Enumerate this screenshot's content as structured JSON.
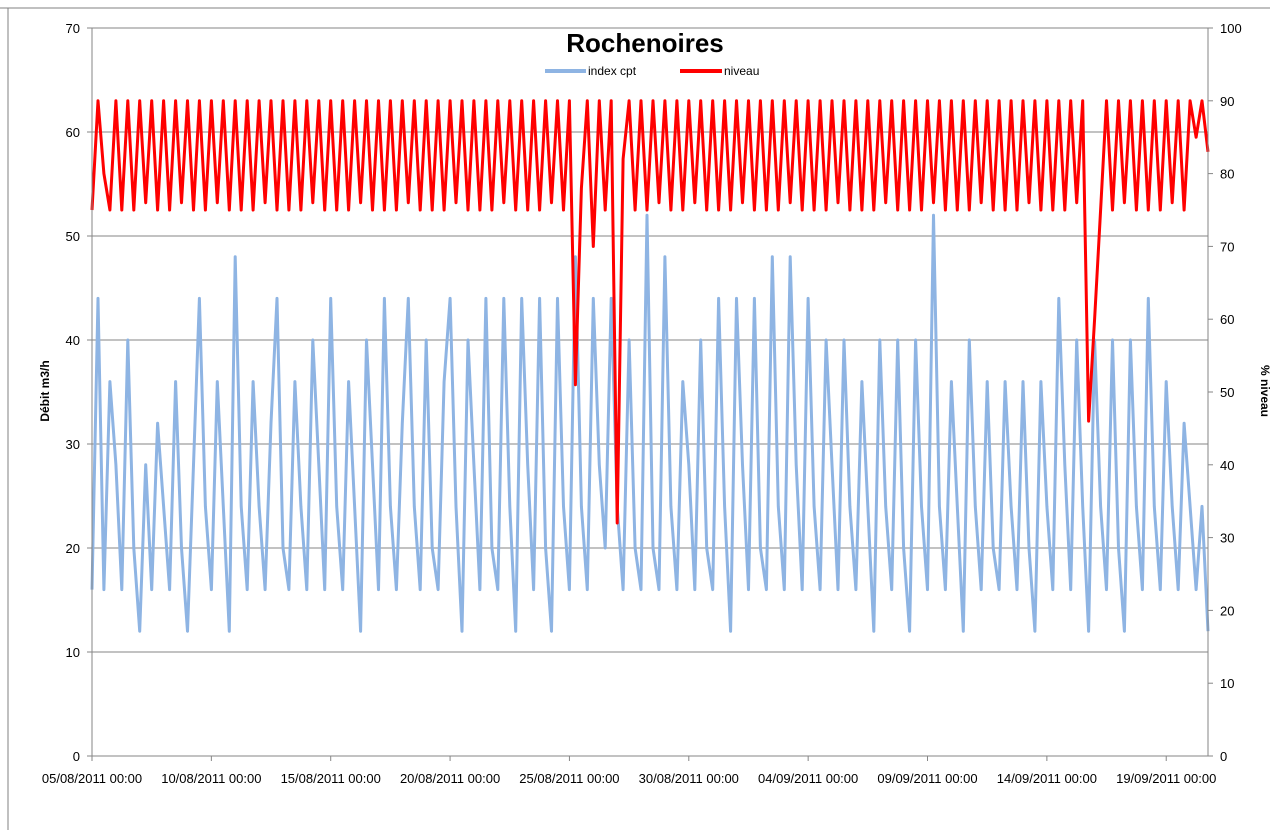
{
  "chart_data": {
    "type": "line",
    "title": "Rochenoires",
    "ylabel": "Débit m3/h",
    "y2label": "% niveau",
    "ylim": [
      0,
      70
    ],
    "y2lim": [
      0,
      100
    ],
    "yticks": [
      0,
      10,
      20,
      30,
      40,
      50,
      60,
      70
    ],
    "y2ticks": [
      0,
      10,
      20,
      30,
      40,
      50,
      60,
      70,
      80,
      90,
      100
    ],
    "grid": true,
    "legend_position": "top-center",
    "x_start": "05/08/2011 00:00",
    "x_end": "20/09/2011 18:00",
    "xtick_labels": [
      "05/08/2011 00:00",
      "10/08/2011 00:00",
      "15/08/2011 00:00",
      "20/08/2011 00:00",
      "25/08/2011 00:00",
      "30/08/2011 00:00",
      "04/09/2011 00:00",
      "09/09/2011 00:00",
      "14/09/2011 00:00",
      "19/09/2011 00:00"
    ],
    "series": [
      {
        "name": "index cpt",
        "axis": "left",
        "color": "#8EB4E3",
        "x": [
          "05/08/2011 00:00",
          "05/08/2011 06:00",
          "05/08/2011 12:00",
          "05/08/2011 18:00",
          "06/08/2011 00:00",
          "06/08/2011 06:00",
          "06/08/2011 12:00",
          "06/08/2011 18:00",
          "07/08/2011 00:00",
          "07/08/2011 06:00",
          "07/08/2011 12:00",
          "07/08/2011 18:00",
          "08/08/2011 00:00",
          "08/08/2011 06:00",
          "08/08/2011 12:00",
          "08/08/2011 18:00",
          "09/08/2011 00:00",
          "09/08/2011 06:00",
          "09/08/2011 12:00",
          "09/08/2011 18:00",
          "10/08/2011 00:00",
          "10/08/2011 06:00",
          "10/08/2011 12:00",
          "10/08/2011 18:00",
          "11/08/2011 00:00",
          "11/08/2011 06:00",
          "11/08/2011 12:00",
          "11/08/2011 18:00",
          "12/08/2011 00:00",
          "12/08/2011 06:00",
          "12/08/2011 12:00",
          "12/08/2011 18:00",
          "13/08/2011 00:00",
          "13/08/2011 06:00",
          "13/08/2011 12:00",
          "13/08/2011 18:00",
          "14/08/2011 00:00",
          "14/08/2011 06:00",
          "14/08/2011 12:00",
          "14/08/2011 18:00",
          "15/08/2011 00:00",
          "15/08/2011 06:00",
          "15/08/2011 12:00",
          "15/08/2011 18:00",
          "16/08/2011 00:00",
          "16/08/2011 06:00",
          "16/08/2011 12:00",
          "16/08/2011 18:00",
          "17/08/2011 00:00",
          "17/08/2011 06:00",
          "17/08/2011 12:00",
          "17/08/2011 18:00",
          "18/08/2011 00:00",
          "18/08/2011 06:00",
          "18/08/2011 12:00",
          "18/08/2011 18:00",
          "19/08/2011 00:00",
          "19/08/2011 06:00",
          "19/08/2011 12:00",
          "19/08/2011 18:00",
          "20/08/2011 00:00",
          "20/08/2011 06:00",
          "20/08/2011 12:00",
          "20/08/2011 18:00",
          "21/08/2011 00:00",
          "21/08/2011 06:00",
          "21/08/2011 12:00",
          "21/08/2011 18:00",
          "22/08/2011 00:00",
          "22/08/2011 06:00",
          "22/08/2011 12:00",
          "22/08/2011 18:00",
          "23/08/2011 00:00",
          "23/08/2011 06:00",
          "23/08/2011 12:00",
          "23/08/2011 18:00",
          "24/08/2011 00:00",
          "24/08/2011 06:00",
          "24/08/2011 12:00",
          "24/08/2011 18:00",
          "25/08/2011 00:00",
          "25/08/2011 06:00",
          "25/08/2011 12:00",
          "25/08/2011 18:00",
          "26/08/2011 00:00",
          "26/08/2011 06:00",
          "26/08/2011 12:00",
          "26/08/2011 18:00",
          "27/08/2011 00:00",
          "27/08/2011 06:00",
          "27/08/2011 12:00",
          "27/08/2011 18:00",
          "28/08/2011 00:00",
          "28/08/2011 06:00",
          "28/08/2011 12:00",
          "28/08/2011 18:00",
          "29/08/2011 00:00",
          "29/08/2011 06:00",
          "29/08/2011 12:00",
          "29/08/2011 18:00",
          "30/08/2011 00:00",
          "30/08/2011 06:00",
          "30/08/2011 12:00",
          "30/08/2011 18:00",
          "31/08/2011 00:00",
          "31/08/2011 06:00",
          "31/08/2011 12:00",
          "31/08/2011 18:00",
          "01/09/2011 00:00",
          "01/09/2011 06:00",
          "01/09/2011 12:00",
          "01/09/2011 18:00",
          "02/09/2011 00:00",
          "02/09/2011 06:00",
          "02/09/2011 12:00",
          "02/09/2011 18:00",
          "03/09/2011 00:00",
          "03/09/2011 06:00",
          "03/09/2011 12:00",
          "03/09/2011 18:00",
          "04/09/2011 00:00",
          "04/09/2011 06:00",
          "04/09/2011 12:00",
          "04/09/2011 18:00",
          "05/09/2011 00:00",
          "05/09/2011 06:00",
          "05/09/2011 12:00",
          "05/09/2011 18:00",
          "06/09/2011 00:00",
          "06/09/2011 06:00",
          "06/09/2011 12:00",
          "06/09/2011 18:00",
          "07/09/2011 00:00",
          "07/09/2011 06:00",
          "07/09/2011 12:00",
          "07/09/2011 18:00",
          "08/09/2011 00:00",
          "08/09/2011 06:00",
          "08/09/2011 12:00",
          "08/09/2011 18:00",
          "09/09/2011 00:00",
          "09/09/2011 06:00",
          "09/09/2011 12:00",
          "09/09/2011 18:00",
          "10/09/2011 00:00",
          "10/09/2011 06:00",
          "10/09/2011 12:00",
          "10/09/2011 18:00",
          "11/09/2011 00:00",
          "11/09/2011 06:00",
          "11/09/2011 12:00",
          "11/09/2011 18:00",
          "12/09/2011 00:00",
          "12/09/2011 06:00",
          "12/09/2011 12:00",
          "12/09/2011 18:00",
          "13/09/2011 00:00",
          "13/09/2011 06:00",
          "13/09/2011 12:00",
          "13/09/2011 18:00",
          "14/09/2011 00:00",
          "14/09/2011 06:00",
          "14/09/2011 12:00",
          "14/09/2011 18:00",
          "15/09/2011 00:00",
          "15/09/2011 06:00",
          "15/09/2011 12:00",
          "15/09/2011 18:00",
          "16/09/2011 00:00",
          "16/09/2011 06:00",
          "16/09/2011 12:00",
          "16/09/2011 18:00",
          "17/09/2011 00:00",
          "17/09/2011 06:00",
          "17/09/2011 12:00",
          "17/09/2011 18:00",
          "18/09/2011 00:00",
          "18/09/2011 06:00",
          "18/09/2011 12:00",
          "18/09/2011 18:00",
          "19/09/2011 00:00",
          "19/09/2011 06:00",
          "19/09/2011 12:00",
          "19/09/2011 18:00",
          "20/09/2011 00:00",
          "20/09/2011 06:00",
          "20/09/2011 12:00",
          "20/09/2011 18:00"
        ],
        "values": [
          16,
          44,
          16,
          36,
          28,
          16,
          40,
          20,
          12,
          28,
          16,
          32,
          24,
          16,
          36,
          20,
          12,
          28,
          44,
          24,
          16,
          36,
          24,
          12,
          48,
          24,
          16,
          36,
          24,
          16,
          32,
          44,
          20,
          16,
          36,
          24,
          16,
          40,
          28,
          16,
          44,
          24,
          16,
          36,
          24,
          12,
          40,
          28,
          16,
          44,
          24,
          16,
          32,
          44,
          24,
          16,
          40,
          20,
          16,
          36,
          44,
          24,
          12,
          40,
          28,
          16,
          44,
          20,
          16,
          44,
          24,
          12,
          44,
          28,
          16,
          44,
          20,
          12,
          44,
          24,
          16,
          48,
          24,
          16,
          44,
          28,
          20,
          44,
          24,
          16,
          40,
          20,
          16,
          52,
          20,
          16,
          48,
          24,
          16,
          36,
          28,
          16,
          40,
          20,
          16,
          44,
          24,
          12,
          44,
          28,
          16,
          44,
          20,
          16,
          48,
          24,
          16,
          48,
          28,
          16,
          44,
          24,
          16,
          40,
          28,
          16,
          40,
          24,
          16,
          36,
          24,
          12,
          40,
          24,
          16,
          40,
          20,
          12,
          40,
          24,
          16,
          52,
          24,
          16,
          36,
          24,
          12,
          40,
          24,
          16,
          36,
          20,
          16,
          36,
          24,
          16,
          36,
          20,
          12,
          36,
          24,
          16,
          44,
          28,
          16,
          40,
          24,
          12,
          40,
          24,
          16,
          40,
          20,
          12,
          40,
          24,
          16,
          44,
          24,
          16,
          36,
          24,
          16,
          32,
          24,
          16,
          24,
          12
        ]
      },
      {
        "name": "niveau",
        "axis": "right",
        "color": "#FF0000",
        "x": [
          "05/08/2011 00:00",
          "05/08/2011 06:00",
          "05/08/2011 12:00",
          "05/08/2011 18:00",
          "06/08/2011 00:00",
          "06/08/2011 06:00",
          "06/08/2011 12:00",
          "06/08/2011 18:00",
          "07/08/2011 00:00",
          "07/08/2011 06:00",
          "07/08/2011 12:00",
          "07/08/2011 18:00",
          "08/08/2011 00:00",
          "08/08/2011 06:00",
          "08/08/2011 12:00",
          "08/08/2011 18:00",
          "09/08/2011 00:00",
          "09/08/2011 06:00",
          "09/08/2011 12:00",
          "09/08/2011 18:00",
          "10/08/2011 00:00",
          "10/08/2011 06:00",
          "10/08/2011 12:00",
          "10/08/2011 18:00",
          "11/08/2011 00:00",
          "11/08/2011 06:00",
          "11/08/2011 12:00",
          "11/08/2011 18:00",
          "12/08/2011 00:00",
          "12/08/2011 06:00",
          "12/08/2011 12:00",
          "12/08/2011 18:00",
          "13/08/2011 00:00",
          "13/08/2011 06:00",
          "13/08/2011 12:00",
          "13/08/2011 18:00",
          "14/08/2011 00:00",
          "14/08/2011 06:00",
          "14/08/2011 12:00",
          "14/08/2011 18:00",
          "15/08/2011 00:00",
          "15/08/2011 06:00",
          "15/08/2011 12:00",
          "15/08/2011 18:00",
          "16/08/2011 00:00",
          "16/08/2011 06:00",
          "16/08/2011 12:00",
          "16/08/2011 18:00",
          "17/08/2011 00:00",
          "17/08/2011 06:00",
          "17/08/2011 12:00",
          "17/08/2011 18:00",
          "18/08/2011 00:00",
          "18/08/2011 06:00",
          "18/08/2011 12:00",
          "18/08/2011 18:00",
          "19/08/2011 00:00",
          "19/08/2011 06:00",
          "19/08/2011 12:00",
          "19/08/2011 18:00",
          "20/08/2011 00:00",
          "20/08/2011 06:00",
          "20/08/2011 12:00",
          "20/08/2011 18:00",
          "21/08/2011 00:00",
          "21/08/2011 06:00",
          "21/08/2011 12:00",
          "21/08/2011 18:00",
          "22/08/2011 00:00",
          "22/08/2011 06:00",
          "22/08/2011 12:00",
          "22/08/2011 18:00",
          "23/08/2011 00:00",
          "23/08/2011 06:00",
          "23/08/2011 12:00",
          "23/08/2011 18:00",
          "24/08/2011 00:00",
          "24/08/2011 06:00",
          "24/08/2011 12:00",
          "24/08/2011 18:00",
          "25/08/2011 00:00",
          "25/08/2011 06:00",
          "25/08/2011 12:00",
          "25/08/2011 18:00",
          "26/08/2011 00:00",
          "26/08/2011 06:00",
          "26/08/2011 12:00",
          "26/08/2011 18:00",
          "27/08/2011 00:00",
          "27/08/2011 06:00",
          "27/08/2011 12:00",
          "27/08/2011 18:00",
          "28/08/2011 00:00",
          "28/08/2011 06:00",
          "28/08/2011 12:00",
          "28/08/2011 18:00",
          "29/08/2011 00:00",
          "29/08/2011 06:00",
          "29/08/2011 12:00",
          "29/08/2011 18:00",
          "30/08/2011 00:00",
          "30/08/2011 06:00",
          "30/08/2011 12:00",
          "30/08/2011 18:00",
          "31/08/2011 00:00",
          "31/08/2011 06:00",
          "31/08/2011 12:00",
          "31/08/2011 18:00",
          "01/09/2011 00:00",
          "01/09/2011 06:00",
          "01/09/2011 12:00",
          "01/09/2011 18:00",
          "02/09/2011 00:00",
          "02/09/2011 06:00",
          "02/09/2011 12:00",
          "02/09/2011 18:00",
          "03/09/2011 00:00",
          "03/09/2011 06:00",
          "03/09/2011 12:00",
          "03/09/2011 18:00",
          "04/09/2011 00:00",
          "04/09/2011 06:00",
          "04/09/2011 12:00",
          "04/09/2011 18:00",
          "05/09/2011 00:00",
          "05/09/2011 06:00",
          "05/09/2011 12:00",
          "05/09/2011 18:00",
          "06/09/2011 00:00",
          "06/09/2011 06:00",
          "06/09/2011 12:00",
          "06/09/2011 18:00",
          "07/09/2011 00:00",
          "07/09/2011 06:00",
          "07/09/2011 12:00",
          "07/09/2011 18:00",
          "08/09/2011 00:00",
          "08/09/2011 06:00",
          "08/09/2011 12:00",
          "08/09/2011 18:00",
          "09/09/2011 00:00",
          "09/09/2011 06:00",
          "09/09/2011 12:00",
          "09/09/2011 18:00",
          "10/09/2011 00:00",
          "10/09/2011 06:00",
          "10/09/2011 12:00",
          "10/09/2011 18:00",
          "11/09/2011 00:00",
          "11/09/2011 06:00",
          "11/09/2011 12:00",
          "11/09/2011 18:00",
          "12/09/2011 00:00",
          "12/09/2011 06:00",
          "12/09/2011 12:00",
          "12/09/2011 18:00",
          "13/09/2011 00:00",
          "13/09/2011 06:00",
          "13/09/2011 12:00",
          "13/09/2011 18:00",
          "14/09/2011 00:00",
          "14/09/2011 06:00",
          "14/09/2011 12:00",
          "14/09/2011 18:00",
          "15/09/2011 00:00",
          "15/09/2011 06:00",
          "15/09/2011 12:00",
          "15/09/2011 18:00",
          "16/09/2011 00:00",
          "16/09/2011 06:00",
          "16/09/2011 12:00",
          "16/09/2011 18:00",
          "17/09/2011 00:00",
          "17/09/2011 06:00",
          "17/09/2011 12:00",
          "17/09/2011 18:00",
          "18/09/2011 00:00",
          "18/09/2011 06:00",
          "18/09/2011 12:00",
          "18/09/2011 18:00",
          "19/09/2011 00:00",
          "19/09/2011 06:00",
          "19/09/2011 12:00",
          "19/09/2011 18:00",
          "20/09/2011 00:00",
          "20/09/2011 06:00",
          "20/09/2011 12:00",
          "20/09/2011 18:00"
        ],
        "values": [
          75,
          90,
          80,
          75,
          90,
          75,
          90,
          75,
          90,
          76,
          90,
          75,
          90,
          75,
          90,
          76,
          90,
          75,
          90,
          75,
          90,
          76,
          90,
          75,
          90,
          75,
          90,
          75,
          90,
          76,
          90,
          75,
          90,
          75,
          90,
          75,
          90,
          76,
          90,
          75,
          90,
          75,
          90,
          75,
          90,
          76,
          90,
          75,
          90,
          75,
          90,
          75,
          90,
          76,
          90,
          75,
          90,
          75,
          90,
          75,
          90,
          76,
          90,
          75,
          90,
          75,
          90,
          75,
          90,
          76,
          90,
          75,
          90,
          75,
          90,
          75,
          90,
          76,
          90,
          75,
          90,
          51,
          78,
          90,
          70,
          90,
          75,
          90,
          32,
          82,
          90,
          75,
          90,
          75,
          90,
          76,
          90,
          75,
          90,
          75,
          90,
          76,
          90,
          75,
          90,
          75,
          90,
          75,
          90,
          76,
          90,
          75,
          90,
          75,
          90,
          75,
          90,
          76,
          90,
          75,
          90,
          75,
          90,
          75,
          90,
          76,
          90,
          75,
          90,
          75,
          90,
          75,
          90,
          76,
          90,
          75,
          90,
          75,
          90,
          75,
          90,
          76,
          90,
          75,
          90,
          75,
          90,
          75,
          90,
          76,
          90,
          75,
          90,
          75,
          90,
          75,
          90,
          76,
          90,
          75,
          90,
          75,
          90,
          75,
          90,
          76,
          90,
          46,
          60,
          75,
          90,
          75,
          90,
          76,
          90,
          75,
          90,
          75,
          90,
          75,
          90,
          76,
          90,
          75,
          90,
          85,
          90,
          83
        ]
      }
    ]
  }
}
